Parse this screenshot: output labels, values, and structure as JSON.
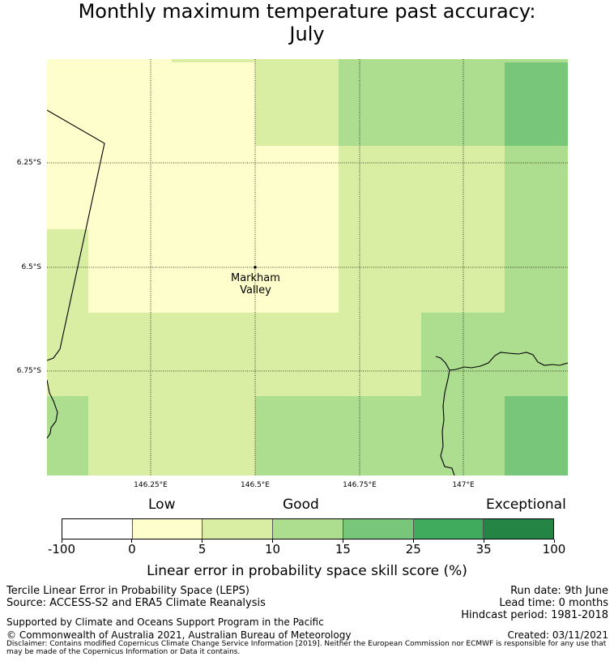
{
  "title": "Monthly maximum temperature past accuracy: July",
  "title_line1": "Monthly maximum temperature past accuracy:",
  "title_line2": "July",
  "map": {
    "latitude_labels": [
      "6.25°S",
      "6.5°S",
      "6.75°S"
    ],
    "longitude_labels": [
      "146.25°E",
      "146.5°E",
      "146.75°E",
      "147°E"
    ],
    "place_line1": "Markham",
    "place_line2": "Valley",
    "grid_lines": "dotted"
  },
  "colorbar": {
    "categories": [
      "Low",
      "Good",
      "Exceptional"
    ],
    "ticks": [
      "-100",
      "0",
      "5",
      "10",
      "15",
      "25",
      "35",
      "100"
    ],
    "colors": [
      "#ffffff",
      "#fefecc",
      "#daeea3",
      "#addd8e",
      "#78c67a",
      "#41ab5d",
      "#238443"
    ],
    "label": "Linear error in probability space skill score (%)"
  },
  "footer": {
    "method": "Tercile Linear Error in Probability Space (LEPS)",
    "source": "Source: ACCESS-S2 and ERA5 Climate Reanalysis",
    "run_date": "Run date: 9th June",
    "lead_time": "Lead time: 0 months",
    "hindcast": "Hindcast period: 1981-2018",
    "supported_by": "Supported by Climate and Oceans Support Program in the Pacific",
    "copyright": "© Commonwealth of Australia 2021, Australian Bureau of Meteorology",
    "created": "Created: 03/11/2021",
    "disclaimer": "Disclaimer: Contains modified Copernicus Climate Change Service Information [2019]. Neither the European Commission nor ECMWF is responsible for any use that may be made of the Copernicus Information or Data it contains."
  }
}
